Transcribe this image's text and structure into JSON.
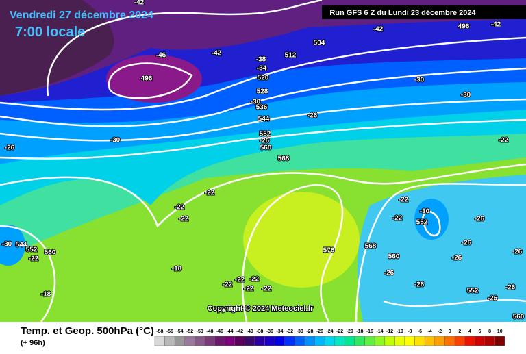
{
  "header": {
    "date": "Vendredi 27 décembre 2024",
    "time": "7:00 locale",
    "run": "Run GFS 6 Z du Lundi 23 décembre 2024"
  },
  "copyright": "Copyright © 2024 Meteociel.fr",
  "footer": {
    "title": "Temp. et Geop. 500hPa (°C)",
    "lead": "(+ 96h)"
  },
  "map_labels": [
    -42,
    -42,
    496,
    -42,
    -46,
    -42,
    504,
    -38,
    512,
    -34,
    496,
    520,
    -30,
    528,
    -30,
    -30,
    536,
    -26,
    544,
    -30,
    552,
    -26,
    560,
    -26,
    -22,
    568,
    -22,
    -22,
    -30,
    -22,
    -22,
    -22,
    552,
    -26,
    -30,
    544,
    552,
    -22,
    560,
    576,
    568,
    -26,
    -26,
    560,
    -26,
    -18,
    -26,
    -22,
    -22,
    -22,
    -22,
    -22,
    -18,
    -26,
    -26,
    552,
    -26,
    560
  ],
  "scale": {
    "labels": [
      -58,
      -56,
      -54,
      -52,
      -50,
      -48,
      -46,
      -44,
      -42,
      -40,
      -38,
      -36,
      -34,
      -32,
      -30,
      -28,
      -26,
      -24,
      -22,
      -20,
      -18,
      -16,
      -14,
      -12,
      -10,
      -8,
      -6,
      -4,
      -2,
      0,
      2,
      4,
      6,
      8,
      10
    ],
    "colors": [
      "#d8d8d8",
      "#b8b8b8",
      "#989898",
      "#9a7a9a",
      "#8a5a8a",
      "#7a3a7a",
      "#6a1a6a",
      "#7a007a",
      "#5a005a",
      "#3a0a6a",
      "#2a00a0",
      "#1a00c8",
      "#0000e6",
      "#0030ff",
      "#0060ff",
      "#0090ff",
      "#00b8ff",
      "#00d8f0",
      "#00e8c0",
      "#00e890",
      "#30e860",
      "#60f040",
      "#90f820",
      "#c0ff00",
      "#e8ff00",
      "#ffff00",
      "#ffe000",
      "#ffc000",
      "#ffa000",
      "#ff7000",
      "#ff4000",
      "#f01000",
      "#d00000",
      "#b00000",
      "#800000"
    ]
  }
}
